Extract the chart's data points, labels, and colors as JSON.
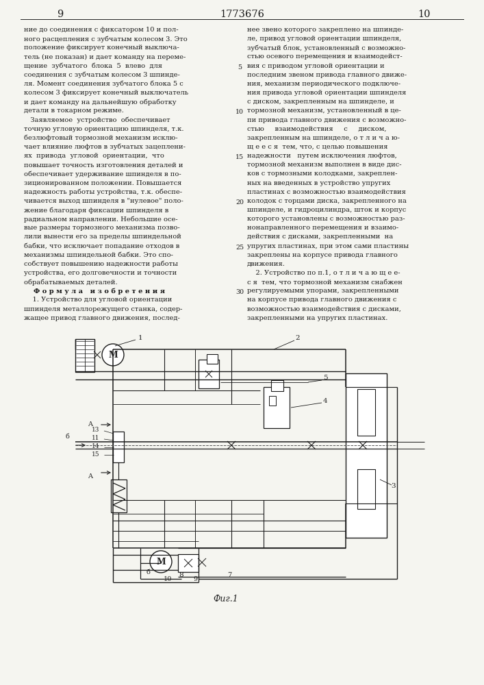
{
  "page_number_left": "9",
  "patent_number": "1773676",
  "page_number_right": "10",
  "background_color": "#f5f5f0",
  "text_color": "#1a1a1a",
  "line_color": "#222222",
  "left_col_lines": [
    "ние до соединения с фиксатором 10 и пол-",
    "ного расцепления с зубчатым колесом 3. Это",
    "положение фиксирует конечный выключа-",
    "тель (не показан) и дает команду на переме-",
    "щение  зубчатого  блока  5  влево  для",
    "соединения с зубчатым колесом 3 шпинде-",
    "ля. Момент соединения зубчатого блока 5 с",
    "колесом 3 фиксирует конечный выключатель",
    "и дает команду на дальнейшую обработку",
    "детали в токарном режиме.",
    "   Заявляемое  устройство  обеспечивает",
    "точную угловую ориентацию шпинделя, т.к.",
    "безлюфтовый тормозной механизм исклю-",
    "чает влияние люфтов в зубчатых зацеплени-",
    "ях  привода  угловой  ориентации,  что",
    "повышает точность изготовления деталей и",
    "обеспечивает удерживание шпинделя в по-",
    "зиционированном положении. Повышается",
    "надежность работы устройства, т.к. обеспе-",
    "чивается выход шпинделя в \"нулевое\" поло-",
    "жение благодаря фиксации шпинделя в",
    "радиальном направлении. Небольшие осе-",
    "вые размеры тормозного механизма позво-",
    "лили вынести его за пределы шпиндельной",
    "бабки, что исключает попадание отходов в",
    "механизмы шпиндельной бабки. Это спо-",
    "собствует повышению надежности работы",
    "устройства, его долговечности и точности",
    "обрабатываемых деталей.",
    "    Ф о р м у л а   и з о б р е т е н и я",
    "    1. Устройство для угловой ориентации",
    "шпинделя металлорежущего станка, содер-",
    "жащее привод главного движения, послед-"
  ],
  "right_col_lines": [
    "нее звено которого закреплено на шпинде-",
    "ле, привод угловой ориентации шпинделя,",
    "зубчатый блок, установленный с возможно-",
    "стью осевого перемещения и взаимодейст-",
    "вия с приводом угловой ориентации и",
    "последним звеном привода главного движе-",
    "ния, механизм периодического подключе-",
    "ния привода угловой ориентации шпинделя",
    "с диском, закрепленным на шпинделе, и",
    "тормозной механизм, установленный в це-",
    "пи привода главного движения с возможно-",
    "стью     взаимодействия     с     диском,",
    "закрепленным на шпинделе, о т л и ч а ю-",
    "щ е е с я  тем, что, с целью повышения",
    "надежности   путем исключения люфтов,",
    "тормозной механизм выполнен в виде дис-",
    "ков с тормозными колодками, закреплен-",
    "ных на введенных в устройство упругих",
    "пластинах с возможностью взаимодействия",
    "колодок с торцами диска, закрепленного на",
    "шпинделе, и гидроцилиндра, шток и корпус",
    "которого установлены с возможностью раз-",
    "нонаправленного перемещения и взаимо-",
    "действия с дисками, закрепленными  на",
    "упругих пластинах, при этом сами пластины",
    "закреплены на корпусе привода главного",
    "движения.",
    "    2. Устройство по п.1, о т л и ч а ю щ е е-",
    "с я  тем, что тормозной механизм снабжен",
    "регулируемыми упорами, закрепленными",
    "на корпусе привода главного движения с",
    "возможностью взаимодействия с дисками,",
    "закрепленными на упругих пластинах."
  ],
  "line_nums": [
    5,
    10,
    15,
    20,
    25,
    30
  ]
}
